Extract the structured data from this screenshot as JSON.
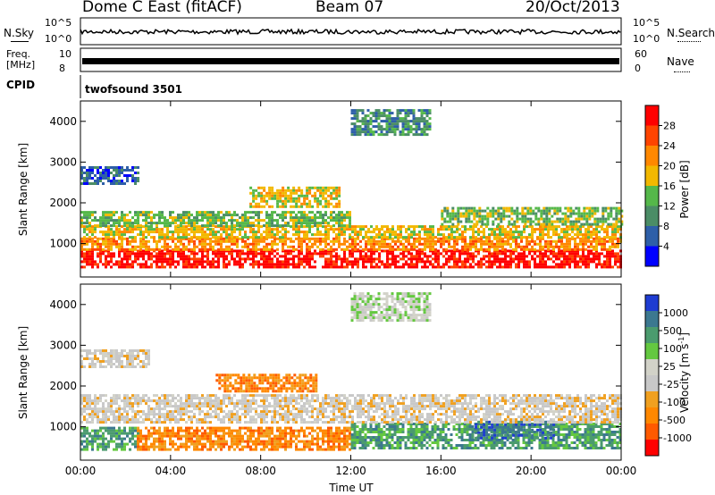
{
  "header": {
    "radar": "Dome C East (fitACF)",
    "beam": "Beam 07",
    "date": "20/Oct/2013"
  },
  "top_panels": {
    "nsky_label": "N.Sky",
    "nsky_ticks": [
      "10^5",
      "10^0"
    ],
    "nsearch_label": "N.Search",
    "nsearch_ticks": [
      "10^5",
      "10^0"
    ],
    "freq_label_1": "Freq.",
    "freq_label_2": "[MHz]",
    "freq_ticks": [
      "10",
      "8"
    ],
    "nave_label": "Nave",
    "nave_ticks": [
      "60",
      "0"
    ],
    "cpid_label": "CPID",
    "cpid_value": "twofsound 3501"
  },
  "colors": {
    "power": [
      "#0000ff",
      "#2e5fa8",
      "#4b8d66",
      "#55b84a",
      "#f2b800",
      "#ff8800",
      "#ff4400",
      "#ff0000"
    ],
    "velocity": [
      "#ff0000",
      "#ff5a00",
      "#ff8800",
      "#f0a020",
      "#c8c8c8",
      "#d2d2c8",
      "#64c840",
      "#4b9b6e",
      "#3c7890",
      "#1e3cd2"
    ]
  },
  "chart_data": [
    {
      "type": "heatmap",
      "name": "power",
      "xlabel": "",
      "ylabel": "Slant Range [km]",
      "x_ticks": [
        "00:00",
        "04:00",
        "08:00",
        "12:00",
        "16:00",
        "20:00",
        "00:00"
      ],
      "y_ticks": [
        "1000",
        "2000",
        "3000",
        "4000"
      ],
      "xlim_hours": [
        0,
        24
      ],
      "ylim_km": [
        180,
        4500
      ],
      "colorbar": {
        "label": "Power [dB]",
        "ticks": [
          "28",
          "24",
          "20",
          "16",
          "12",
          "8",
          "4"
        ],
        "range": [
          0,
          32
        ]
      },
      "bands": [
        {
          "t0": 0.0,
          "t1": 24.0,
          "r0": 450,
          "r1": 850,
          "level": 7
        },
        {
          "t0": 0.0,
          "t1": 24.0,
          "r0": 850,
          "r1": 1150,
          "level": 5
        },
        {
          "t0": 0.0,
          "t1": 24.0,
          "r0": 1150,
          "r1": 1450,
          "level": 4
        },
        {
          "t0": 0.0,
          "t1": 12.0,
          "r0": 1450,
          "r1": 1800,
          "level": 3
        },
        {
          "t0": 0.0,
          "t1": 2.5,
          "r0": 2500,
          "r1": 2900,
          "level": 1
        },
        {
          "t0": 7.5,
          "t1": 11.5,
          "r0": 1900,
          "r1": 2400,
          "level": 4
        },
        {
          "t0": 12.0,
          "t1": 15.5,
          "r0": 3700,
          "r1": 4300,
          "level": 2
        },
        {
          "t0": 16.0,
          "t1": 24.0,
          "r0": 1450,
          "r1": 1900,
          "level": 3
        }
      ]
    },
    {
      "type": "heatmap",
      "name": "velocity",
      "xlabel": "Time UT",
      "ylabel": "Slant Range [km]",
      "x_ticks": [
        "00:00",
        "04:00",
        "08:00",
        "12:00",
        "16:00",
        "20:00",
        "00:00"
      ],
      "y_ticks": [
        "1000",
        "2000",
        "3000",
        "4000"
      ],
      "xlim_hours": [
        0,
        24
      ],
      "ylim_km": [
        180,
        4500
      ],
      "colorbar": {
        "label_main": "Velocity [m s",
        "label_sup": "-1",
        "label_end": "]",
        "ticks": [
          "1000",
          "500",
          "100",
          "25",
          "-25",
          "-100",
          "-500",
          "-1000"
        ]
      },
      "bands": [
        {
          "t0": 0.0,
          "t1": 2.5,
          "r0": 450,
          "r1": 1000,
          "level": 7
        },
        {
          "t0": 2.5,
          "t1": 12.0,
          "r0": 450,
          "r1": 1000,
          "level": 2
        },
        {
          "t0": 12.0,
          "t1": 24.0,
          "r0": 450,
          "r1": 1100,
          "level": 7
        },
        {
          "t0": 17.5,
          "t1": 21.0,
          "r0": 700,
          "r1": 1150,
          "level": 8
        },
        {
          "t0": 0.0,
          "t1": 24.0,
          "r0": 1100,
          "r1": 1800,
          "level": 4
        },
        {
          "t0": 0.0,
          "t1": 3.0,
          "r0": 2500,
          "r1": 2900,
          "level": 4
        },
        {
          "t0": 6.0,
          "t1": 10.5,
          "r0": 1900,
          "r1": 2300,
          "level": 2
        },
        {
          "t0": 12.0,
          "t1": 15.5,
          "r0": 3600,
          "r1": 4300,
          "level": 5
        }
      ]
    }
  ]
}
